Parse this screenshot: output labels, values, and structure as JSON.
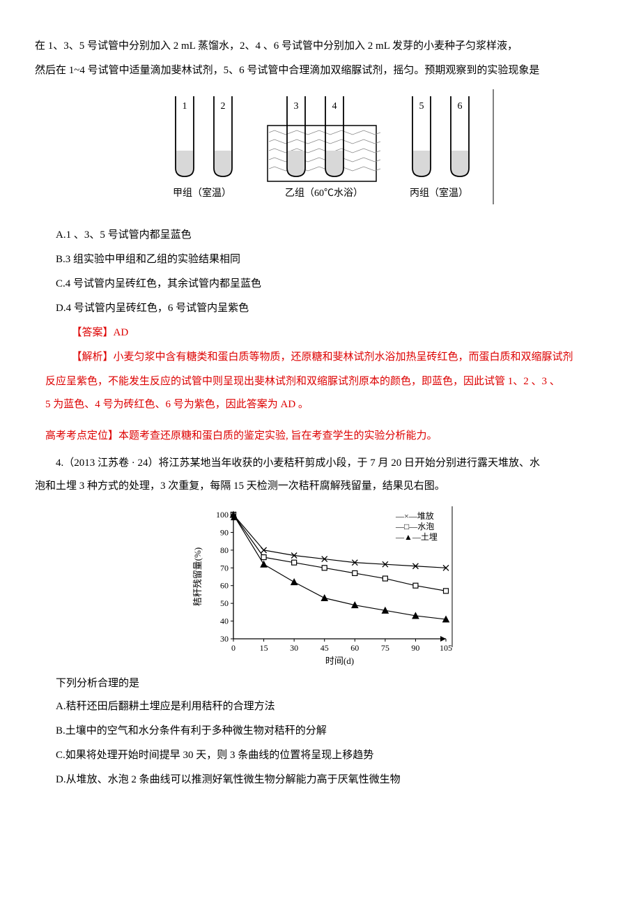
{
  "q3": {
    "intro_line1": "在 1、3、5  号试管中分别加入 2    mL 蒸馏水，2、4 、6  号试管中分别加入 2    mL 发芽的小麦种子匀浆样液，",
    "intro_line2": "然后在  1~4  号试管中适量滴加斐林试剂，5、6  号试管中合理滴加双缩脲试剂，摇匀。预期观察到的实验现象是",
    "diagram": {
      "tube_labels": [
        "1",
        "2",
        "3",
        "4",
        "5",
        "6"
      ],
      "group_labels": [
        "甲组（室温）",
        "乙组（60℃水浴）",
        "丙组（室温）"
      ],
      "tube_fill": "#d8d8d8",
      "tube_stroke": "#000",
      "water_fill": "#e8e8e8",
      "bg": "#fff"
    },
    "options": {
      "A": "A.1 、3、5 号试管内都呈蓝色",
      "B": "B.3 组实验中甲组和乙组的实验结果相同",
      "C": "C.4 号试管内呈砖红色，其余试管内都呈蓝色",
      "D": "D.4 号试管内呈砖红色，6 号试管内呈紫色"
    },
    "answer_label": "【答案】AD",
    "explain_prefix": "【解析】",
    "explain_body": "小麦匀浆中含有糖类和蛋白质等物质，还原糖和斐林试剂水浴加热呈砖红色，而蛋白质和双缩脲试剂",
    "explain_line2": "反应呈紫色，不能发生反应的试管中则呈现出斐林试剂和双缩脲试剂原本的颜色，即蓝色，因此试管  1、2 、3 、",
    "explain_line3": "5 为蓝色、4 号为砖红色、6 号为紫色，因此答案为 AD 。",
    "kaodian": "高考考点定位】本题考查还原糖和蛋白质的鉴定实验,   旨在考查学生的实验分析能力。"
  },
  "q4": {
    "intro": "4.（2013 江苏卷 · 24）将江苏某地当年收获的小麦秸秆剪成小段，于 7 月 20   日开始分别进行露天堆放、水",
    "intro_line2": "泡和土埋 3 种方式的处理，3  次重复，每隔  15  天检测一次秸秆腐解残留量，结果见右图。",
    "chart": {
      "type": "line",
      "xlabel": "时间(d)",
      "ylabel": "秸秆残留量(%)",
      "xlim": [
        0,
        105
      ],
      "ylim": [
        30,
        100
      ],
      "xticks": [
        0,
        15,
        30,
        45,
        60,
        75,
        90,
        105
      ],
      "yticks": [
        30,
        40,
        50,
        60,
        70,
        80,
        90,
        100
      ],
      "series": [
        {
          "name": "堆放",
          "marker": "x",
          "values": [
            [
              0,
              100
            ],
            [
              15,
              80
            ],
            [
              30,
              77
            ],
            [
              45,
              75
            ],
            [
              60,
              73
            ],
            [
              75,
              72
            ],
            [
              90,
              71
            ],
            [
              105,
              70
            ]
          ],
          "color": "#000"
        },
        {
          "name": "水泡",
          "marker": "square",
          "values": [
            [
              0,
              100
            ],
            [
              15,
              76
            ],
            [
              30,
              73
            ],
            [
              45,
              70
            ],
            [
              60,
              67
            ],
            [
              75,
              64
            ],
            [
              90,
              60
            ],
            [
              105,
              57
            ]
          ],
          "color": "#000"
        },
        {
          "name": "土埋",
          "marker": "triangle",
          "values": [
            [
              0,
              100
            ],
            [
              15,
              72
            ],
            [
              30,
              62
            ],
            [
              45,
              53
            ],
            [
              60,
              49
            ],
            [
              75,
              46
            ],
            [
              90,
              43
            ],
            [
              105,
              41
            ]
          ],
          "color": "#000"
        }
      ],
      "legend_labels": [
        "—×—堆放",
        "—□—水泡",
        "—▲—土埋"
      ],
      "label_fontsize": 13,
      "tick_fontsize": 12,
      "background_color": "#ffffff",
      "axis_color": "#000",
      "line_width": 1.2
    },
    "prompt": "下列分析合理的是",
    "options": {
      "A": "A.秸秆还田后翻耕土埋应是利用秸秆的合理方法",
      "B": "B.土壤中的空气和水分条件有利于多种微生物对秸秆的分解",
      "C": "C.如果将处理开始时间提早 30  天，则 3  条曲线的位置将呈现上移趋势",
      "D": "D.从堆放、水泡 2  条曲线可以推测好氧性微生物分解能力高于厌氧性微生物"
    }
  }
}
